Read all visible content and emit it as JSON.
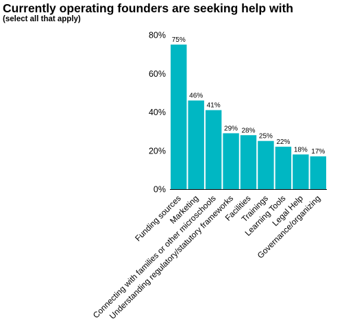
{
  "title": "Currently operating founders are seeking help with",
  "subtitle": "(select all that apply)",
  "colors": {
    "bar": "#00B7C3",
    "axis": "#000000",
    "text": "#000000"
  },
  "chart_data": {
    "type": "bar",
    "title": "Currently operating founders are seeking help with",
    "subtitle": "(select all that apply)",
    "categories": [
      "Funding sources",
      "Marketing",
      "Connecting with families or other microschools",
      "Understanding regulatory/statutory frameworks",
      "Facilities",
      "Trainings",
      "Learning Tools",
      "Legal Help",
      "Governance/organizing"
    ],
    "values": [
      75,
      46,
      41,
      29,
      28,
      25,
      22,
      18,
      17
    ],
    "data_labels": [
      "75%",
      "46%",
      "41%",
      "29%",
      "28%",
      "25%",
      "22%",
      "18%",
      "17%"
    ],
    "ylim": [
      0,
      80
    ],
    "yticks": [
      0,
      20,
      40,
      60,
      80
    ],
    "ytick_labels": [
      "0%",
      "20%",
      "40%",
      "60%",
      "80%"
    ],
    "xlabel": "",
    "ylabel": "",
    "grid": false,
    "legend": "none"
  }
}
